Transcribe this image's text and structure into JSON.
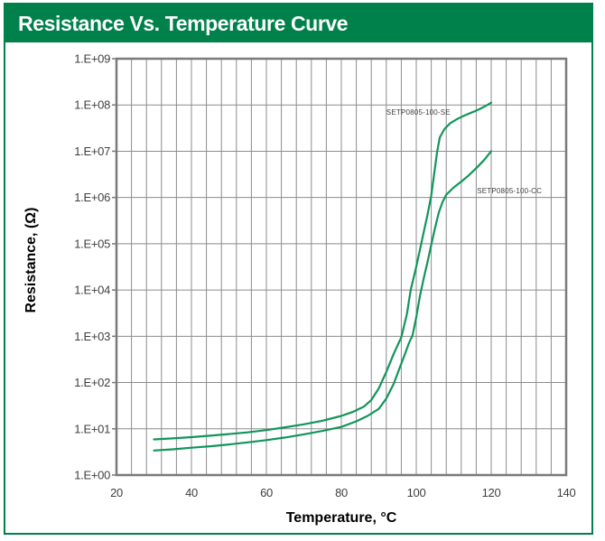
{
  "header": {
    "title": "Resistance Vs. Temperature Curve"
  },
  "colors": {
    "header_bg": "#00814B",
    "card_border": "#00814B",
    "curve": "#12955A",
    "grid": "#8C8C8C",
    "frame": "#7A7A7A",
    "tick_text": "#3F3F3F",
    "axis_title_text": "#000000",
    "header_text": "#FFFFFF"
  },
  "chart_data": {
    "type": "line",
    "title": "Resistance Vs. Temperature Curve",
    "xlabel": "Temperature, °C",
    "ylabel": "Resistance, (Ω)",
    "grid": "on",
    "legend_position": "inline-annotations",
    "x_axis": {
      "min": 20,
      "max": 140,
      "major_tick_step": 20,
      "minor_grid_step": 4,
      "tick_labels": [
        "20",
        "40",
        "60",
        "80",
        "100",
        "120",
        "140"
      ]
    },
    "y_axis": {
      "scale": "log",
      "min": 1,
      "max": 1000000000,
      "decades": 9,
      "tick_labels": [
        "1.E+00",
        "1.E+01",
        "1.E+02",
        "1.E+03",
        "1.E+04",
        "1.E+05",
        "1.E+06",
        "1.E+07",
        "1.E+08",
        "1.E+09"
      ]
    },
    "series": [
      {
        "name": "SETP0805-100-SE",
        "points": [
          [
            30,
            5.9
          ],
          [
            35,
            6.2
          ],
          [
            40,
            6.6
          ],
          [
            45,
            7.1
          ],
          [
            50,
            7.7
          ],
          [
            55,
            8.4
          ],
          [
            60,
            9.4
          ],
          [
            65,
            10.8
          ],
          [
            70,
            12.5
          ],
          [
            75,
            15
          ],
          [
            80,
            19
          ],
          [
            83,
            23
          ],
          [
            86,
            30
          ],
          [
            88,
            42
          ],
          [
            90,
            75
          ],
          [
            92,
            170
          ],
          [
            94,
            420
          ],
          [
            96,
            950
          ],
          [
            97.5,
            3000
          ],
          [
            98.5,
            10000
          ],
          [
            100,
            32000
          ],
          [
            101,
            75000
          ],
          [
            102,
            180000
          ],
          [
            103,
            420000
          ],
          [
            104,
            1100000
          ],
          [
            105,
            4500000
          ],
          [
            105.6,
            10000000
          ],
          [
            106.3,
            20000000
          ],
          [
            107.5,
            30000000
          ],
          [
            109,
            40000000
          ],
          [
            111,
            50000000
          ],
          [
            113,
            60000000
          ],
          [
            115,
            70000000
          ],
          [
            117,
            82000000
          ],
          [
            119,
            100000000
          ],
          [
            120,
            112000000
          ]
        ]
      },
      {
        "name": "SETP0805-100-CC",
        "points": [
          [
            30,
            3.4
          ],
          [
            35,
            3.6
          ],
          [
            40,
            3.9
          ],
          [
            45,
            4.2
          ],
          [
            50,
            4.6
          ],
          [
            55,
            5.1
          ],
          [
            60,
            5.7
          ],
          [
            65,
            6.5
          ],
          [
            70,
            7.6
          ],
          [
            75,
            9
          ],
          [
            80,
            11
          ],
          [
            84,
            14.5
          ],
          [
            87,
            19
          ],
          [
            90,
            27
          ],
          [
            92,
            45
          ],
          [
            94,
            95
          ],
          [
            95.5,
            200
          ],
          [
            97,
            420
          ],
          [
            98,
            700
          ],
          [
            99,
            1050
          ],
          [
            100,
            2600
          ],
          [
            101,
            7500
          ],
          [
            102,
            18000
          ],
          [
            103,
            40000
          ],
          [
            104,
            95000
          ],
          [
            105,
            220000
          ],
          [
            106,
            470000
          ],
          [
            107,
            800000
          ],
          [
            108,
            1150000
          ],
          [
            110,
            1650000
          ],
          [
            112,
            2200000
          ],
          [
            114,
            3000000
          ],
          [
            116,
            4300000
          ],
          [
            118,
            6300000
          ],
          [
            120,
            10000000
          ]
        ]
      }
    ],
    "annotations": [
      {
        "text": "SETP0805-100-SE",
        "x": 92,
        "y": 70000000
      },
      {
        "text": "SETP0805-100-CC",
        "x": 116.2,
        "y": 1400000
      }
    ]
  }
}
